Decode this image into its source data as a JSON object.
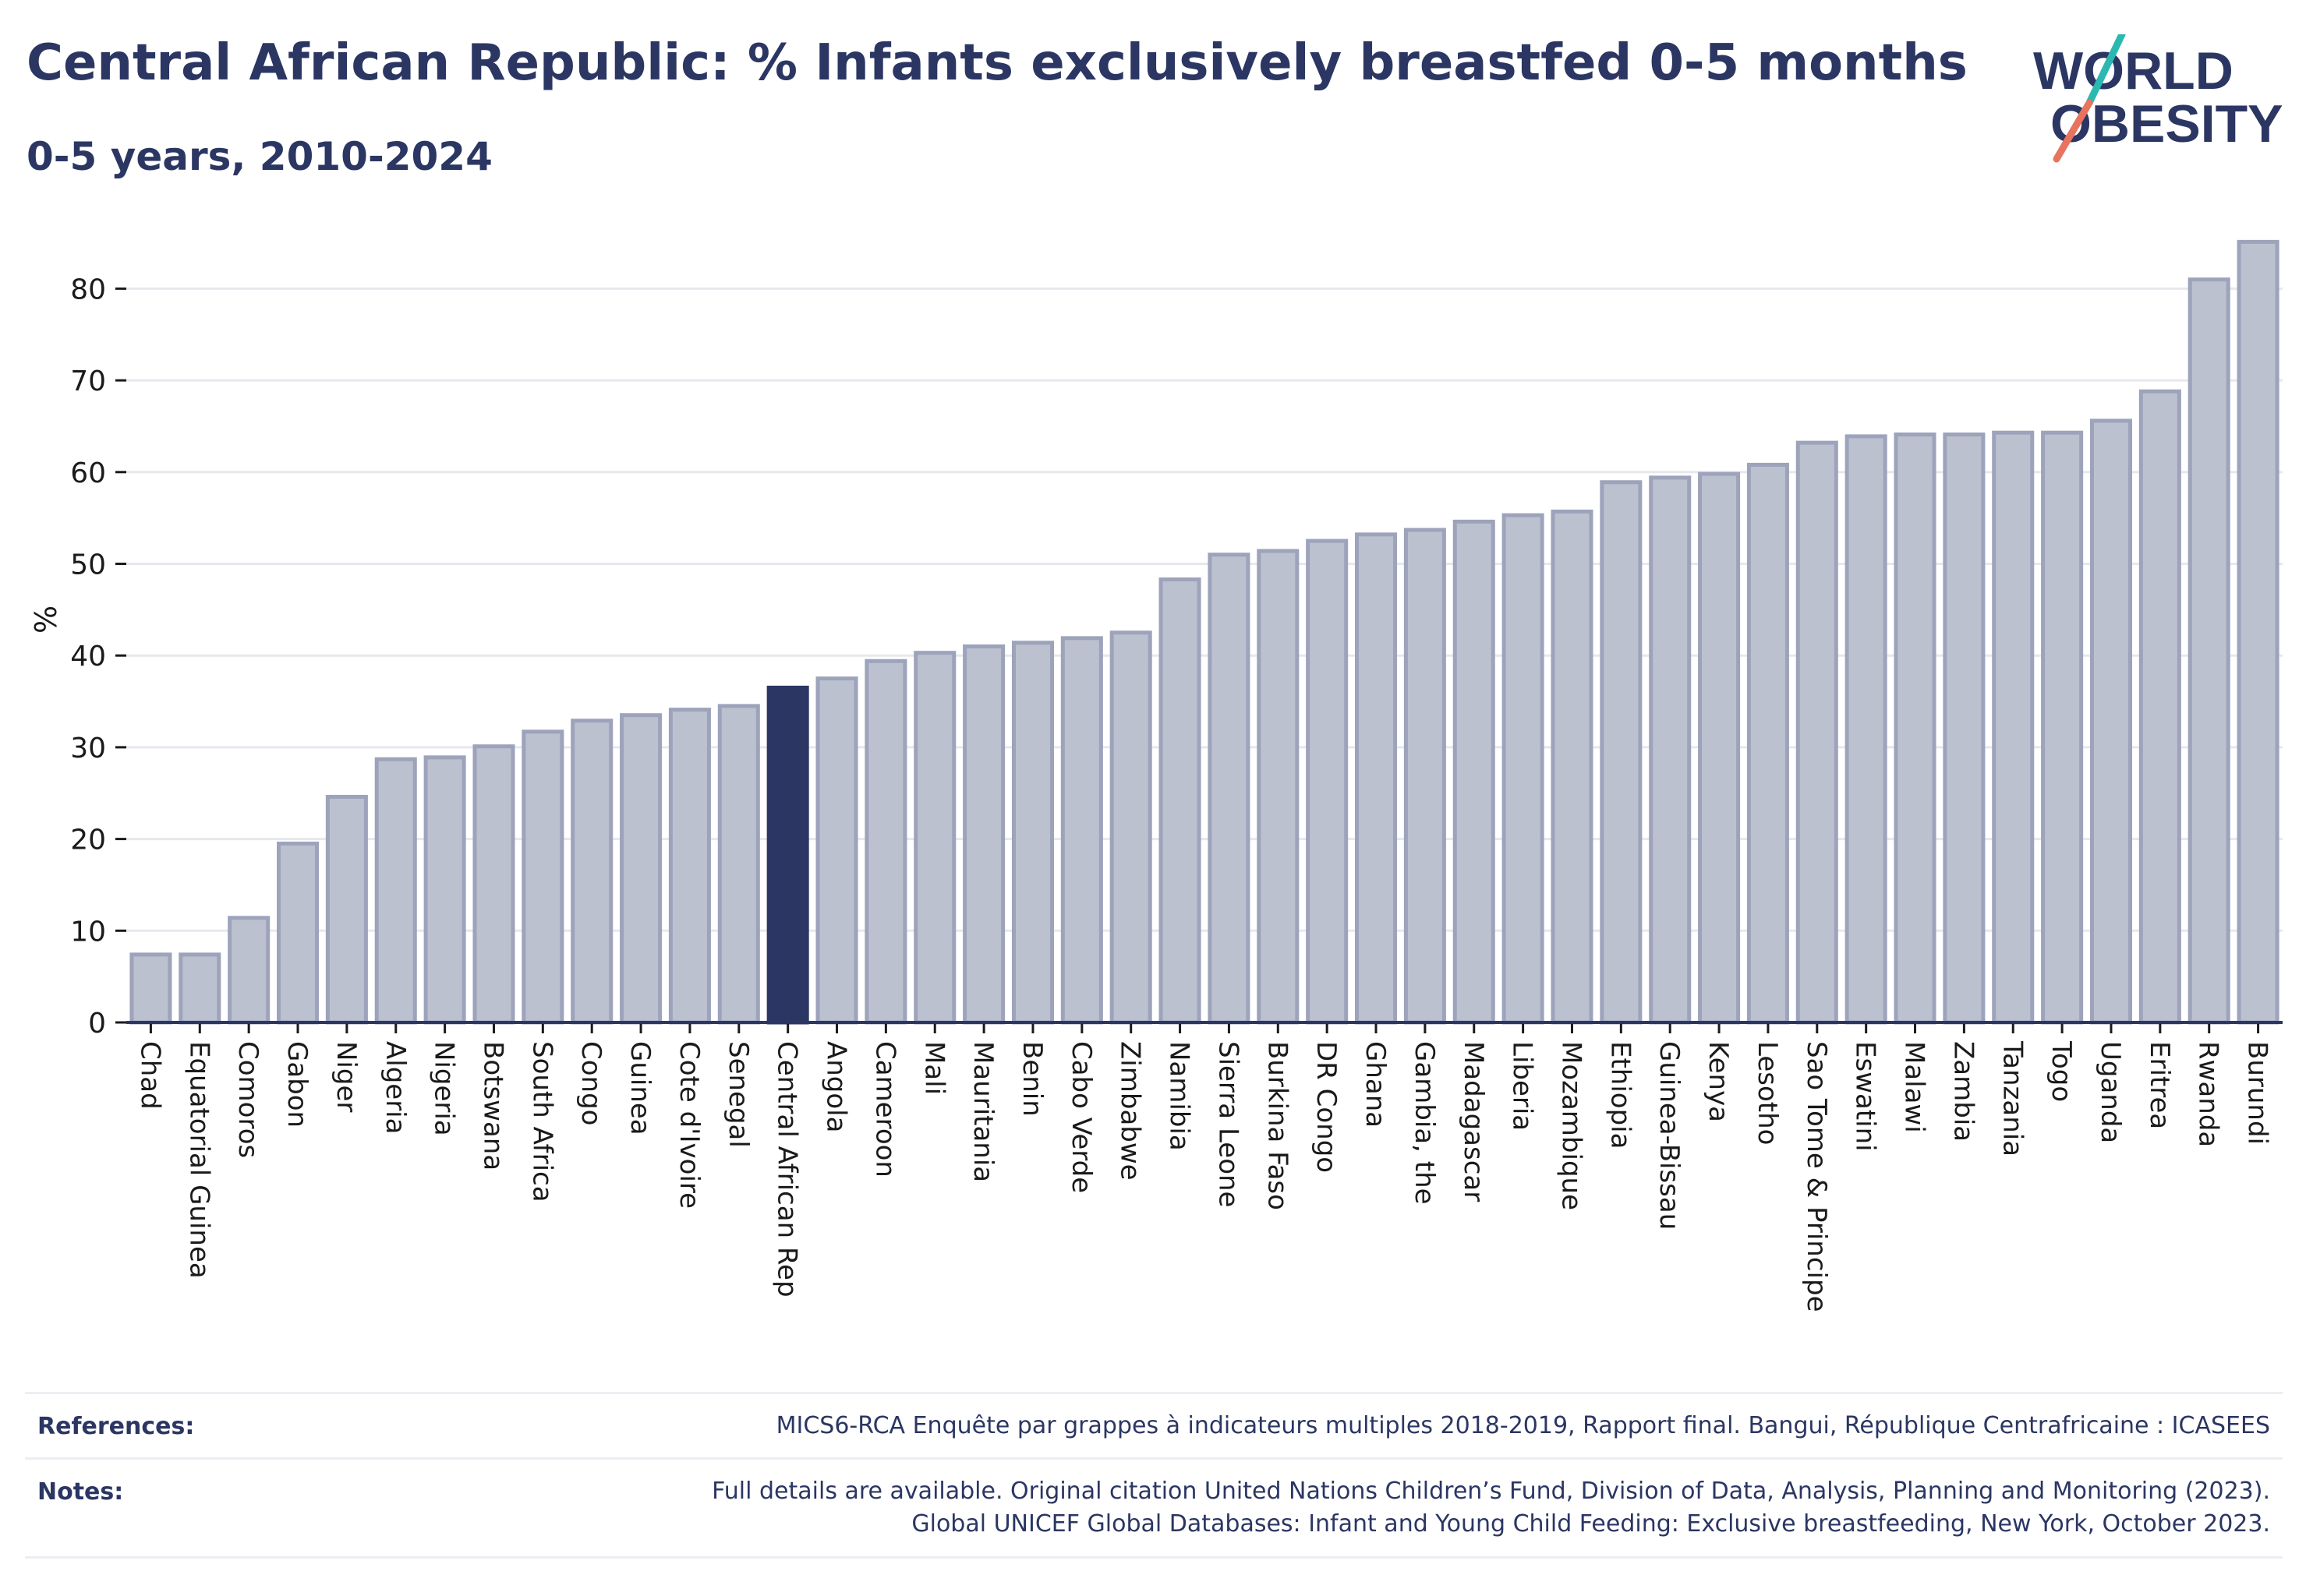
{
  "header": {
    "title": "Central African Republic: % Infants exclusively breastfed 0-5 months",
    "subtitle": "0-5 years, 2010-2024"
  },
  "logo": {
    "line1": "WORLD",
    "line2": "OBESITY",
    "colors": {
      "text": "#2b3663",
      "slash_teal": "#2bb8b0",
      "slash_coral": "#e8735f"
    }
  },
  "chart_data": {
    "type": "bar",
    "ylabel": "%",
    "xlabel": "",
    "ylim": [
      0,
      87
    ],
    "yticks": [
      0,
      10,
      20,
      30,
      40,
      50,
      60,
      70,
      80
    ],
    "grid": true,
    "highlight": "Central African Rep",
    "colors": {
      "bar": "#bcc1cf",
      "bar_edge": "#9da3bb",
      "highlight": "#2b3663",
      "grid": "#e6e8ee",
      "axis": "#2b3663"
    },
    "categories": [
      "Chad",
      "Equatorial Guinea",
      "Comoros",
      "Gabon",
      "Niger",
      "Algeria",
      "Nigeria",
      "Botswana",
      "South Africa",
      "Congo",
      "Guinea",
      "Cote d'Ivoire",
      "Senegal",
      "Central African Rep",
      "Angola",
      "Cameroon",
      "Mali",
      "Mauritania",
      "Benin",
      "Cabo Verde",
      "Zimbabwe",
      "Namibia",
      "Sierra Leone",
      "Burkina Faso",
      "DR Congo",
      "Ghana",
      "Gambia, the",
      "Madagascar",
      "Liberia",
      "Mozambique",
      "Ethiopia",
      "Guinea-Bissau",
      "Kenya",
      "Lesotho",
      "Sao Tome & Principe",
      "Eswatini",
      "Malawi",
      "Zambia",
      "Tanzania",
      "Togo",
      "Uganda",
      "Eritrea",
      "Rwanda",
      "Burundi"
    ],
    "values": [
      7.4,
      7.4,
      11.4,
      19.5,
      24.6,
      28.7,
      28.9,
      30.1,
      31.7,
      32.9,
      33.5,
      34.1,
      34.5,
      36.5,
      37.5,
      39.4,
      40.3,
      41.0,
      41.4,
      41.9,
      42.5,
      48.3,
      51.0,
      51.4,
      52.5,
      53.2,
      53.7,
      54.6,
      55.3,
      55.7,
      58.9,
      59.4,
      59.8,
      60.8,
      63.2,
      63.9,
      64.1,
      64.1,
      64.3,
      64.3,
      65.6,
      68.8,
      81.0,
      85.1
    ]
  },
  "footer": {
    "references_label": "References:",
    "references_text": "MICS6-RCA Enquête par grappes à indicateurs multiples 2018-2019, Rapport final. Bangui, République Centrafricaine : ICASEES",
    "notes_label": "Notes:",
    "notes_line1": "Full details are available. Original citation United Nations Children’s Fund, Division of Data, Analysis, Planning and Monitoring (2023).",
    "notes_line2": "Global UNICEF Global Databases: Infant and Young Child Feeding: Exclusive breastfeeding, New York, October 2023."
  }
}
